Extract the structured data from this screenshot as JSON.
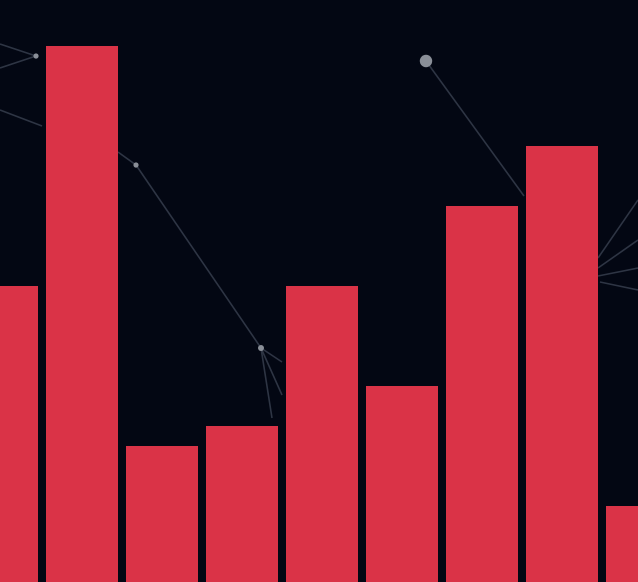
{
  "theme": {
    "background": "#030713",
    "bar_color": "#DA3347",
    "edge_color": "#2E3544",
    "node_color": "#8A8F98"
  },
  "chart_data": {
    "type": "bar",
    "values": [
      296,
      536,
      136,
      156,
      296,
      196,
      376,
      436,
      76
    ],
    "ylim": [
      0,
      582
    ],
    "grid": false,
    "legend": "none"
  },
  "network": {
    "nodes": [
      {
        "id": "n1",
        "size": "small"
      },
      {
        "id": "n2",
        "size": "small"
      },
      {
        "id": "n3",
        "size": "small"
      },
      {
        "id": "n4",
        "size": "large"
      }
    ]
  }
}
